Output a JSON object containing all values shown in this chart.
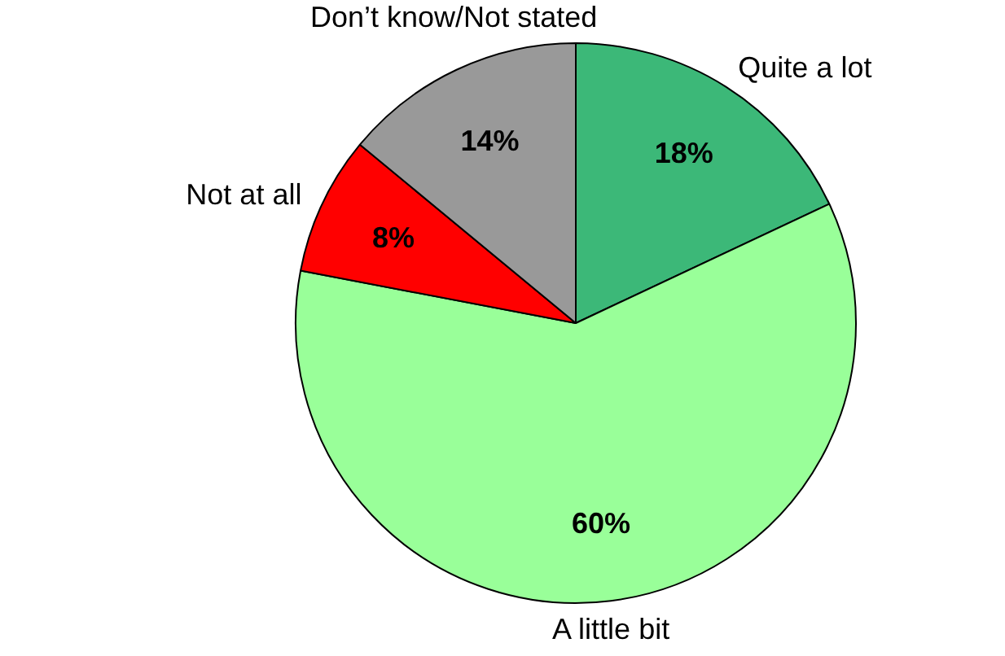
{
  "chart_data": {
    "type": "pie",
    "categories": [
      "Quite a lot",
      "A little bit",
      "Not at all",
      "Don’t know/Not stated"
    ],
    "values": [
      18,
      60,
      8,
      14
    ],
    "value_labels": [
      "18%",
      "60%",
      "8%",
      "14%"
    ],
    "colors": [
      "#3cb878",
      "#99ff99",
      "#ff0000",
      "#999999"
    ]
  }
}
